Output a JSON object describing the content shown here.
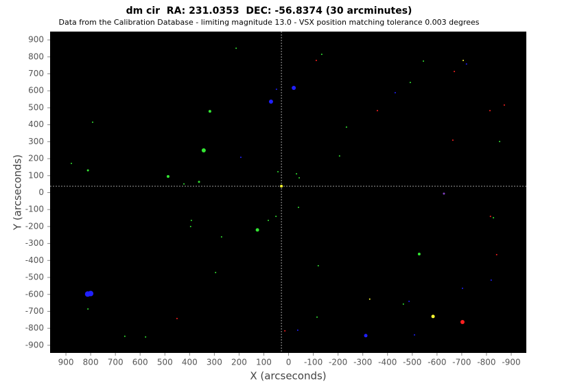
{
  "chart_data": {
    "type": "scatter",
    "title": "dm cir  RA: 231.0353  DEC: -56.8374 (30 arcminutes)",
    "subtitle": "Data from the Calibration Database - limiting magnitude 13.0 - VSX position matching tolerance 0.003 degrees",
    "x_label": "X (arcseconds)",
    "y_label": "Y (arcseconds)",
    "xlim": [
      964,
      -961
    ],
    "ylim": [
      -945,
      949
    ],
    "xticks": [
      900,
      800,
      700,
      600,
      500,
      400,
      300,
      200,
      100,
      0,
      -100,
      -200,
      -300,
      -400,
      -500,
      -600,
      -700,
      -800,
      -900
    ],
    "yticks": [
      -900,
      -800,
      -700,
      -600,
      -500,
      -400,
      -300,
      -200,
      -100,
      0,
      100,
      200,
      300,
      400,
      500,
      600,
      700,
      800,
      900
    ],
    "crosshair": {
      "x": 29,
      "y": 38
    },
    "series": [
      {
        "color": "#33e633",
        "x": [
          212,
          -134,
          -545,
          -492,
          318,
          792,
          -234,
          -853,
          343,
          -206,
          878,
          811,
          43,
          -32,
          487,
          -43,
          362,
          423,
          -40,
          51,
          -828,
          82,
          393,
          396,
          126,
          271,
          -528,
          -120,
          295,
          -464,
          811,
          -115,
          662,
          578
        ],
        "values": [
          851,
          815,
          775,
          649,
          479,
          415,
          386,
          301,
          249,
          216,
          172,
          131,
          123,
          111,
          95,
          87,
          63,
          51,
          -87,
          -140,
          -148,
          -164,
          -164,
          -200,
          -220,
          -261,
          -362,
          -431,
          -471,
          -657,
          -686,
          -734,
          -847,
          -851
        ],
        "sizes": [
          1,
          1,
          1,
          1,
          2,
          1,
          1,
          1,
          3,
          1,
          1,
          1.5,
          1,
          1,
          2,
          1,
          1.5,
          1,
          1,
          1,
          1,
          1,
          1,
          1,
          2.5,
          1,
          2,
          1,
          1,
          1,
          1,
          1,
          1,
          1
        ]
      },
      {
        "color": "#ff2020",
        "x": [
          -112,
          -670,
          -872,
          -359,
          -814,
          -664,
          -816,
          -841,
          451,
          -703,
          15
        ],
        "values": [
          779,
          714,
          516,
          483,
          483,
          309,
          -140,
          -366,
          -742,
          -763,
          -815
        ],
        "sizes": [
          1,
          1,
          1,
          1,
          1,
          1,
          1,
          1,
          1,
          3,
          1
        ]
      },
      {
        "color": "#2020ff",
        "x": [
          -719,
          -21,
          49,
          -431,
          71,
          193,
          -819,
          -703,
          812,
          800,
          -487,
          -37,
          -312,
          -509
        ],
        "values": [
          758,
          617,
          609,
          589,
          536,
          208,
          -516,
          -564,
          -598,
          -595,
          -641,
          -811,
          -843,
          -839
        ],
        "sizes": [
          1,
          3,
          1,
          1,
          3,
          1,
          1,
          1,
          4,
          4,
          1,
          1,
          2.5,
          1
        ]
      },
      {
        "color": "#ffff33",
        "x": [
          -706,
          29,
          -328,
          -584
        ],
        "values": [
          779,
          38,
          -628,
          -730
        ],
        "sizes": [
          1,
          2,
          1,
          2.5
        ]
      },
      {
        "color": "#8040c0",
        "x": [
          -628
        ],
        "values": [
          -6
        ],
        "sizes": [
          1.5
        ]
      }
    ]
  }
}
